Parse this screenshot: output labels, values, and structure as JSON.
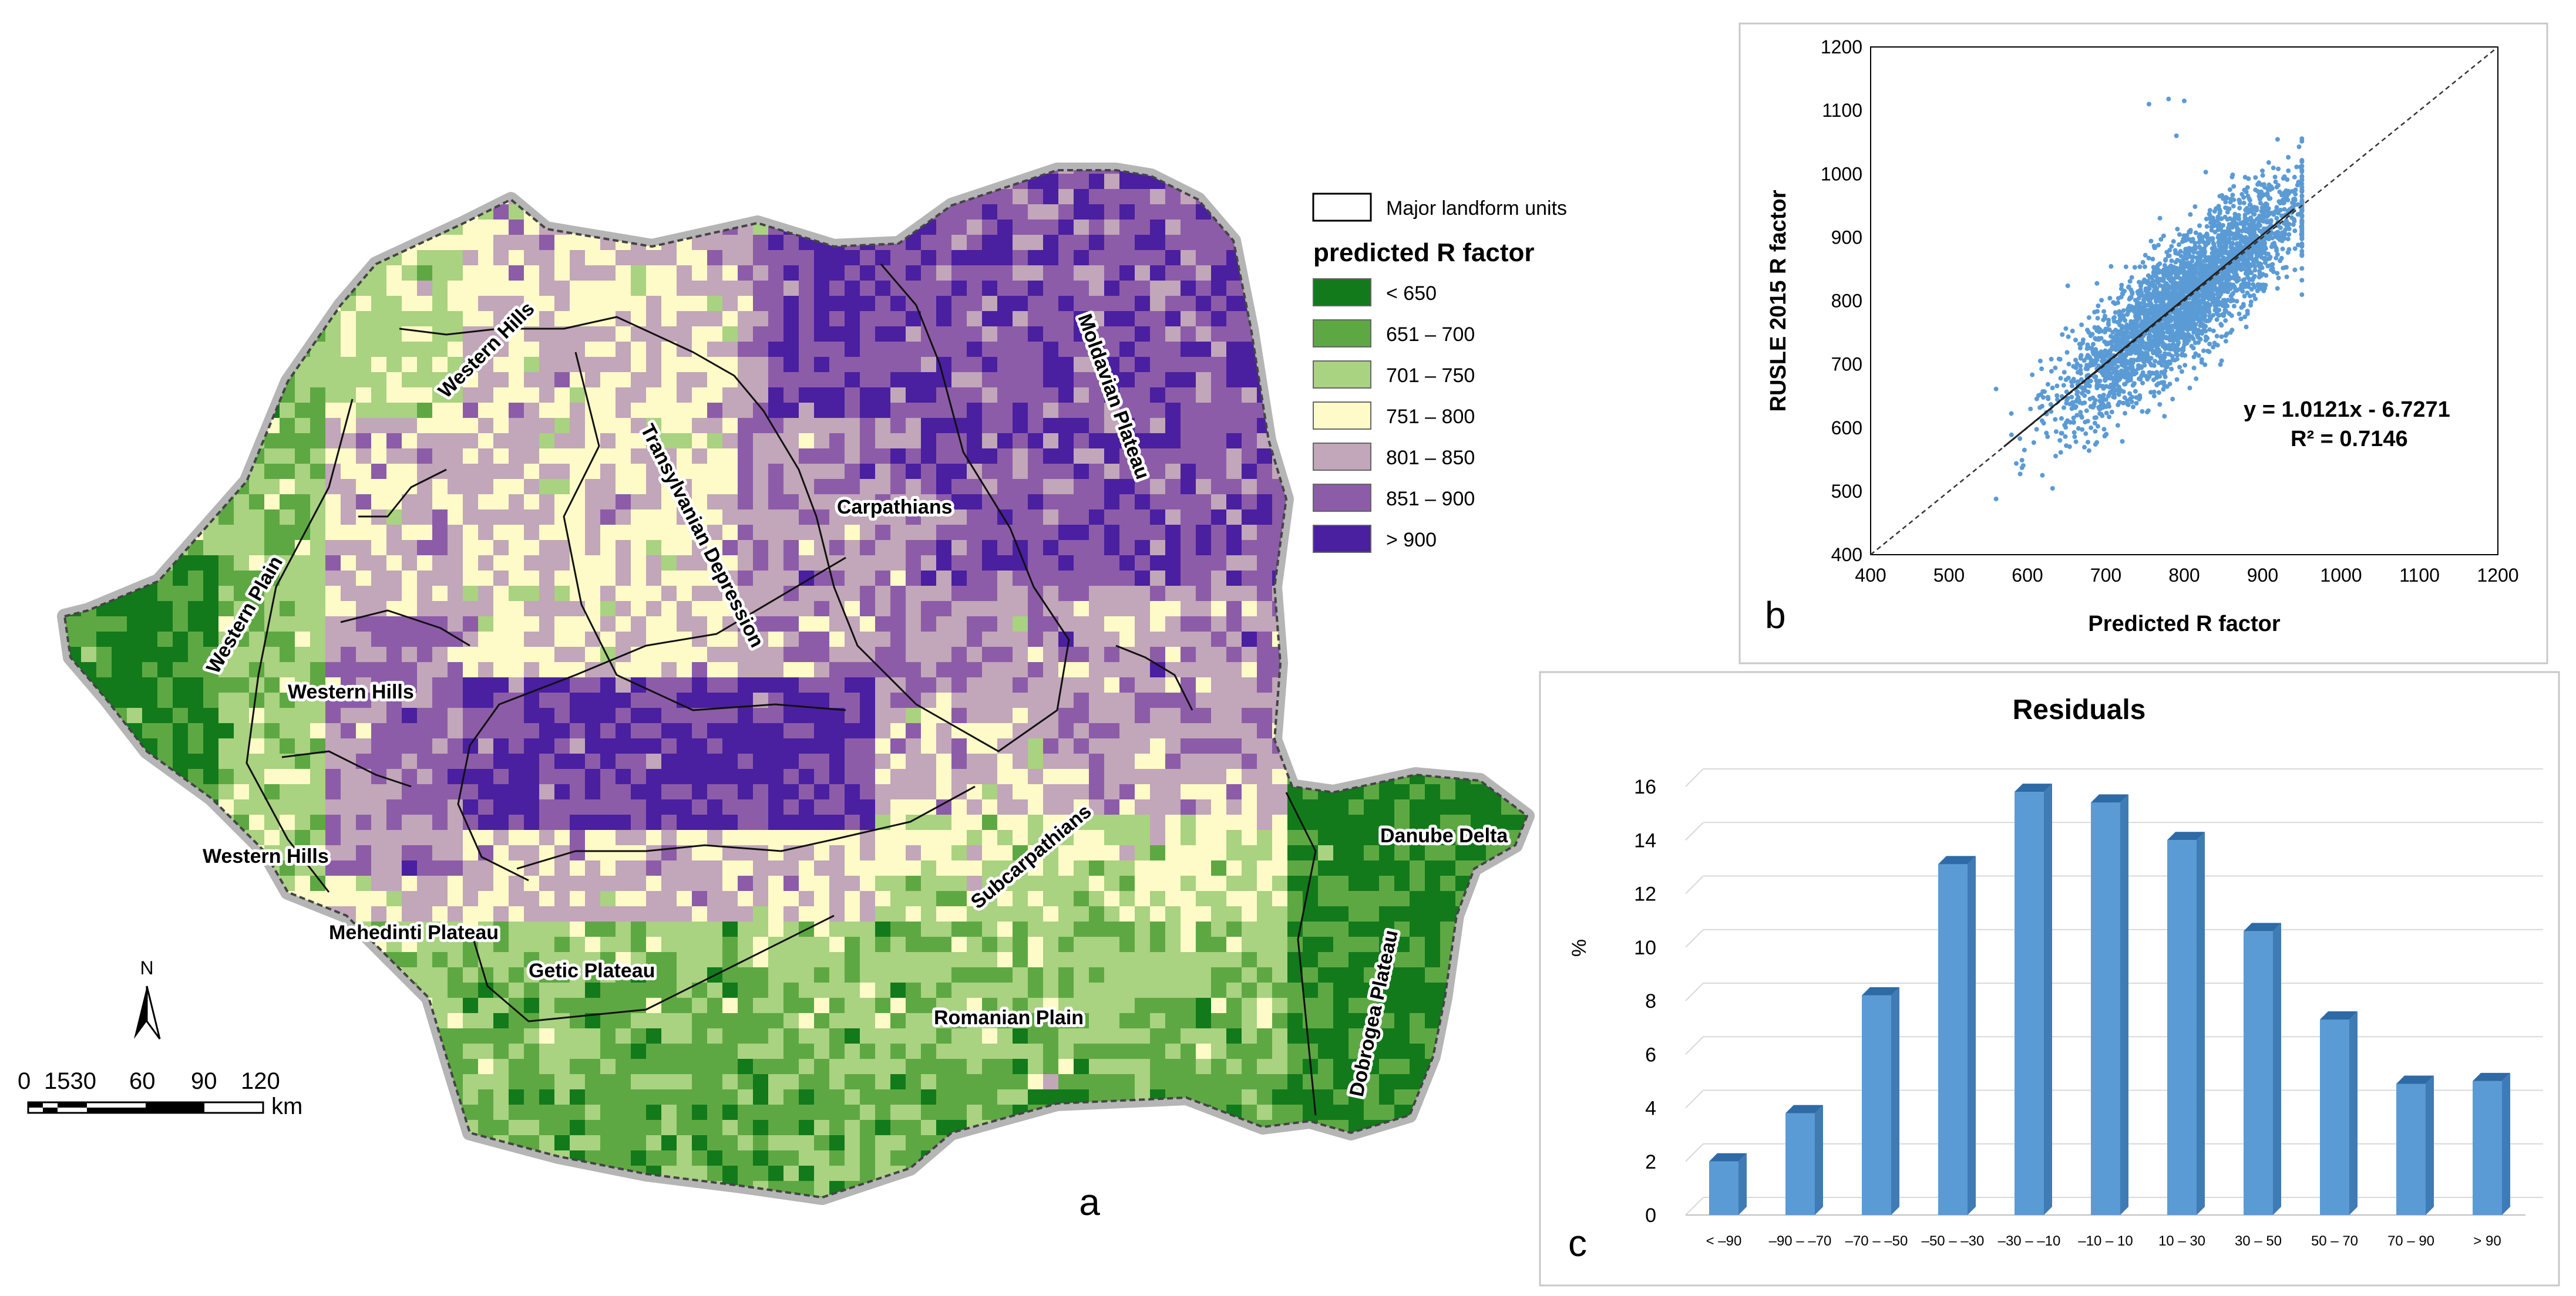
{
  "panels": {
    "a": "a",
    "b": "b",
    "c": "c"
  },
  "map": {
    "landform_labels": [
      "Western Hills",
      "Western Plain",
      "Western Hills",
      "Western Hills",
      "Transylvanian Depression",
      "Carpathians",
      "Moldavian Plateau",
      "Subcarpathians",
      "Mehedinti Plateau",
      "Getic Plateau",
      "Romanian Plain",
      "Dobrogea Plateau",
      "Danube Delta"
    ],
    "legend": {
      "boundary_label": "Major landform units",
      "title": "predicted R factor",
      "classes": [
        {
          "label": "< 650",
          "color": "#127a1b"
        },
        {
          "label": "651 – 700",
          "color": "#5ea843"
        },
        {
          "label": "701 – 750",
          "color": "#a9d281"
        },
        {
          "label": "751 – 800",
          "color": "#fffbc8"
        },
        {
          "label": "801 – 850",
          "color": "#c2a6b9"
        },
        {
          "label": "851 – 900",
          "color": "#8c5ca8"
        },
        {
          "label": "> 900",
          "color": "#4a1fa0"
        }
      ]
    },
    "north_label": "N",
    "scalebar": {
      "ticks": [
        "0",
        "1530",
        "60",
        "90",
        "120"
      ],
      "unit": "km"
    }
  },
  "chart_data": [
    {
      "type": "scatter",
      "xlabel": "Predicted R factor",
      "ylabel": "RUSLE 2015 R factor",
      "xlim": [
        400,
        1200
      ],
      "ylim": [
        400,
        1200
      ],
      "xticks": [
        "400",
        "500",
        "600",
        "700",
        "800",
        "900",
        "1000",
        "1100",
        "1200"
      ],
      "yticks": [
        "400",
        "500",
        "600",
        "700",
        "800",
        "900",
        "1000",
        "1100",
        "1200"
      ],
      "equation": "y = 1.0121x - 6.7271",
      "r2": "R² = 0.7146",
      "regression": {
        "slope": 1.0121,
        "intercept": -6.7271
      },
      "one_to_one_line": true,
      "point_color": "#5b9bd5",
      "points_summary": {
        "x_range": [
          560,
          950
        ],
        "y_range": [
          480,
          1120
        ]
      }
    },
    {
      "type": "bar",
      "title": "Residuals",
      "ylabel": "%",
      "ylim": [
        0,
        16
      ],
      "yticks": [
        "0",
        "2",
        "4",
        "6",
        "8",
        "10",
        "12",
        "14",
        "16"
      ],
      "categories": [
        "< –90",
        "–90 – –70",
        "–70 – –50",
        "–50 – –30",
        "–30 – –10",
        "–10 – 10",
        "10 – 30",
        "30 – 50",
        "50 – 70",
        "70 – 90",
        "> 90"
      ],
      "values": [
        2.0,
        3.8,
        8.2,
        13.1,
        15.8,
        15.4,
        14.0,
        10.6,
        7.3,
        4.9,
        5.0
      ],
      "bar_color": "#5b9bd5"
    }
  ]
}
